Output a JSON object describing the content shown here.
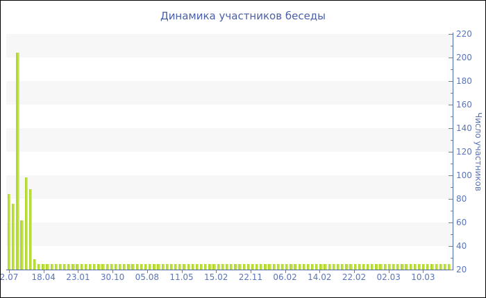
{
  "chart_data": {
    "type": "bar",
    "title": "Динамика участников беседы",
    "ylabel": "Число участников",
    "xlabel": "",
    "ylim": [
      20,
      220
    ],
    "y_major_step": 20,
    "y_minor_step": 10,
    "legend": "none",
    "background_bands": "alternating horizontal 20-unit stripes, top stripe gray",
    "x_tick_labels": [
      "2.07",
      "18.04",
      "23.01",
      "30.10",
      "05.08",
      "11.05",
      "15.02",
      "22.11",
      "06.02",
      "14.02",
      "22.02",
      "02.03",
      "10.03"
    ],
    "values": [
      84,
      76,
      204,
      62,
      98,
      88,
      29,
      25,
      25,
      25,
      25,
      25,
      25,
      25,
      25,
      25,
      25,
      25,
      25,
      25,
      25,
      25,
      25,
      25,
      25,
      25,
      25,
      25,
      25,
      25,
      25,
      25,
      25,
      25,
      25,
      25,
      25,
      25,
      25,
      25,
      25,
      25,
      25,
      25,
      25,
      25,
      25,
      25,
      25,
      25,
      25,
      25,
      25,
      25,
      25,
      25,
      25,
      25,
      25,
      25,
      25,
      25,
      25,
      25,
      25,
      25,
      25,
      25,
      25,
      25,
      25,
      25,
      25,
      25,
      25,
      25,
      25,
      25,
      25,
      25,
      25,
      25,
      25,
      25,
      25,
      25,
      25,
      25,
      25,
      25,
      25,
      25,
      25,
      25,
      25,
      25,
      25,
      25,
      25,
      25,
      25,
      25,
      25,
      25
    ],
    "colors": {
      "bar": "#b9df36",
      "bar_highlight": "#d9ee90",
      "band_gray": "#f7f7f7",
      "axis_line": "#4a67a8",
      "tick_mark": "#7d7d7d",
      "tick_label": "#5a74b8",
      "title": "#4a5fa8"
    }
  }
}
